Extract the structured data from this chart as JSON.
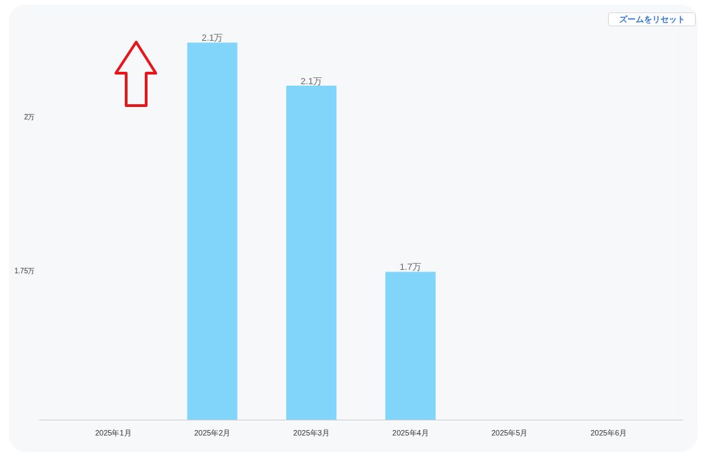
{
  "chart_data": {
    "type": "bar",
    "categories": [
      "2025年1月",
      "2025年2月",
      "2025年3月",
      "2025年4月",
      "2025年5月",
      "2025年6月"
    ],
    "values": [
      null,
      2.12,
      2.05,
      1.748,
      null,
      null
    ],
    "color": "#81d4fa",
    "value_labels": [
      null,
      "2.1万",
      "2.1万",
      "1.7万",
      null,
      null
    ],
    "ylim": [
      1.508,
      2.17
    ],
    "yticks": [
      {
        "value": 2,
        "label": "2万"
      },
      {
        "value": 1.75,
        "label": "1.75万"
      }
    ],
    "grid": false,
    "annotations": [
      "ズームをリセット"
    ]
  }
}
